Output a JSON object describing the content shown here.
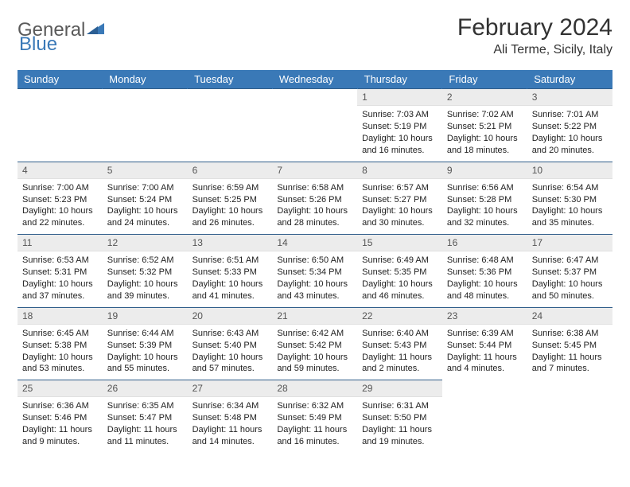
{
  "logo": {
    "general": "General",
    "blue": "Blue"
  },
  "title": {
    "month": "February 2024",
    "location": "Ali Terme, Sicily, Italy"
  },
  "colors": {
    "header_bg": "#3a79b7",
    "header_text": "#ffffff",
    "daynum_bg": "#ececec",
    "border": "#2f5d8a"
  },
  "day_headers": [
    "Sunday",
    "Monday",
    "Tuesday",
    "Wednesday",
    "Thursday",
    "Friday",
    "Saturday"
  ],
  "weeks": [
    [
      null,
      null,
      null,
      null,
      {
        "n": "1",
        "sr": "Sunrise: 7:03 AM",
        "ss": "Sunset: 5:19 PM",
        "dl": "Daylight: 10 hours and 16 minutes."
      },
      {
        "n": "2",
        "sr": "Sunrise: 7:02 AM",
        "ss": "Sunset: 5:21 PM",
        "dl": "Daylight: 10 hours and 18 minutes."
      },
      {
        "n": "3",
        "sr": "Sunrise: 7:01 AM",
        "ss": "Sunset: 5:22 PM",
        "dl": "Daylight: 10 hours and 20 minutes."
      }
    ],
    [
      {
        "n": "4",
        "sr": "Sunrise: 7:00 AM",
        "ss": "Sunset: 5:23 PM",
        "dl": "Daylight: 10 hours and 22 minutes."
      },
      {
        "n": "5",
        "sr": "Sunrise: 7:00 AM",
        "ss": "Sunset: 5:24 PM",
        "dl": "Daylight: 10 hours and 24 minutes."
      },
      {
        "n": "6",
        "sr": "Sunrise: 6:59 AM",
        "ss": "Sunset: 5:25 PM",
        "dl": "Daylight: 10 hours and 26 minutes."
      },
      {
        "n": "7",
        "sr": "Sunrise: 6:58 AM",
        "ss": "Sunset: 5:26 PM",
        "dl": "Daylight: 10 hours and 28 minutes."
      },
      {
        "n": "8",
        "sr": "Sunrise: 6:57 AM",
        "ss": "Sunset: 5:27 PM",
        "dl": "Daylight: 10 hours and 30 minutes."
      },
      {
        "n": "9",
        "sr": "Sunrise: 6:56 AM",
        "ss": "Sunset: 5:28 PM",
        "dl": "Daylight: 10 hours and 32 minutes."
      },
      {
        "n": "10",
        "sr": "Sunrise: 6:54 AM",
        "ss": "Sunset: 5:30 PM",
        "dl": "Daylight: 10 hours and 35 minutes."
      }
    ],
    [
      {
        "n": "11",
        "sr": "Sunrise: 6:53 AM",
        "ss": "Sunset: 5:31 PM",
        "dl": "Daylight: 10 hours and 37 minutes."
      },
      {
        "n": "12",
        "sr": "Sunrise: 6:52 AM",
        "ss": "Sunset: 5:32 PM",
        "dl": "Daylight: 10 hours and 39 minutes."
      },
      {
        "n": "13",
        "sr": "Sunrise: 6:51 AM",
        "ss": "Sunset: 5:33 PM",
        "dl": "Daylight: 10 hours and 41 minutes."
      },
      {
        "n": "14",
        "sr": "Sunrise: 6:50 AM",
        "ss": "Sunset: 5:34 PM",
        "dl": "Daylight: 10 hours and 43 minutes."
      },
      {
        "n": "15",
        "sr": "Sunrise: 6:49 AM",
        "ss": "Sunset: 5:35 PM",
        "dl": "Daylight: 10 hours and 46 minutes."
      },
      {
        "n": "16",
        "sr": "Sunrise: 6:48 AM",
        "ss": "Sunset: 5:36 PM",
        "dl": "Daylight: 10 hours and 48 minutes."
      },
      {
        "n": "17",
        "sr": "Sunrise: 6:47 AM",
        "ss": "Sunset: 5:37 PM",
        "dl": "Daylight: 10 hours and 50 minutes."
      }
    ],
    [
      {
        "n": "18",
        "sr": "Sunrise: 6:45 AM",
        "ss": "Sunset: 5:38 PM",
        "dl": "Daylight: 10 hours and 53 minutes."
      },
      {
        "n": "19",
        "sr": "Sunrise: 6:44 AM",
        "ss": "Sunset: 5:39 PM",
        "dl": "Daylight: 10 hours and 55 minutes."
      },
      {
        "n": "20",
        "sr": "Sunrise: 6:43 AM",
        "ss": "Sunset: 5:40 PM",
        "dl": "Daylight: 10 hours and 57 minutes."
      },
      {
        "n": "21",
        "sr": "Sunrise: 6:42 AM",
        "ss": "Sunset: 5:42 PM",
        "dl": "Daylight: 10 hours and 59 minutes."
      },
      {
        "n": "22",
        "sr": "Sunrise: 6:40 AM",
        "ss": "Sunset: 5:43 PM",
        "dl": "Daylight: 11 hours and 2 minutes."
      },
      {
        "n": "23",
        "sr": "Sunrise: 6:39 AM",
        "ss": "Sunset: 5:44 PM",
        "dl": "Daylight: 11 hours and 4 minutes."
      },
      {
        "n": "24",
        "sr": "Sunrise: 6:38 AM",
        "ss": "Sunset: 5:45 PM",
        "dl": "Daylight: 11 hours and 7 minutes."
      }
    ],
    [
      {
        "n": "25",
        "sr": "Sunrise: 6:36 AM",
        "ss": "Sunset: 5:46 PM",
        "dl": "Daylight: 11 hours and 9 minutes."
      },
      {
        "n": "26",
        "sr": "Sunrise: 6:35 AM",
        "ss": "Sunset: 5:47 PM",
        "dl": "Daylight: 11 hours and 11 minutes."
      },
      {
        "n": "27",
        "sr": "Sunrise: 6:34 AM",
        "ss": "Sunset: 5:48 PM",
        "dl": "Daylight: 11 hours and 14 minutes."
      },
      {
        "n": "28",
        "sr": "Sunrise: 6:32 AM",
        "ss": "Sunset: 5:49 PM",
        "dl": "Daylight: 11 hours and 16 minutes."
      },
      {
        "n": "29",
        "sr": "Sunrise: 6:31 AM",
        "ss": "Sunset: 5:50 PM",
        "dl": "Daylight: 11 hours and 19 minutes."
      },
      null,
      null
    ]
  ]
}
